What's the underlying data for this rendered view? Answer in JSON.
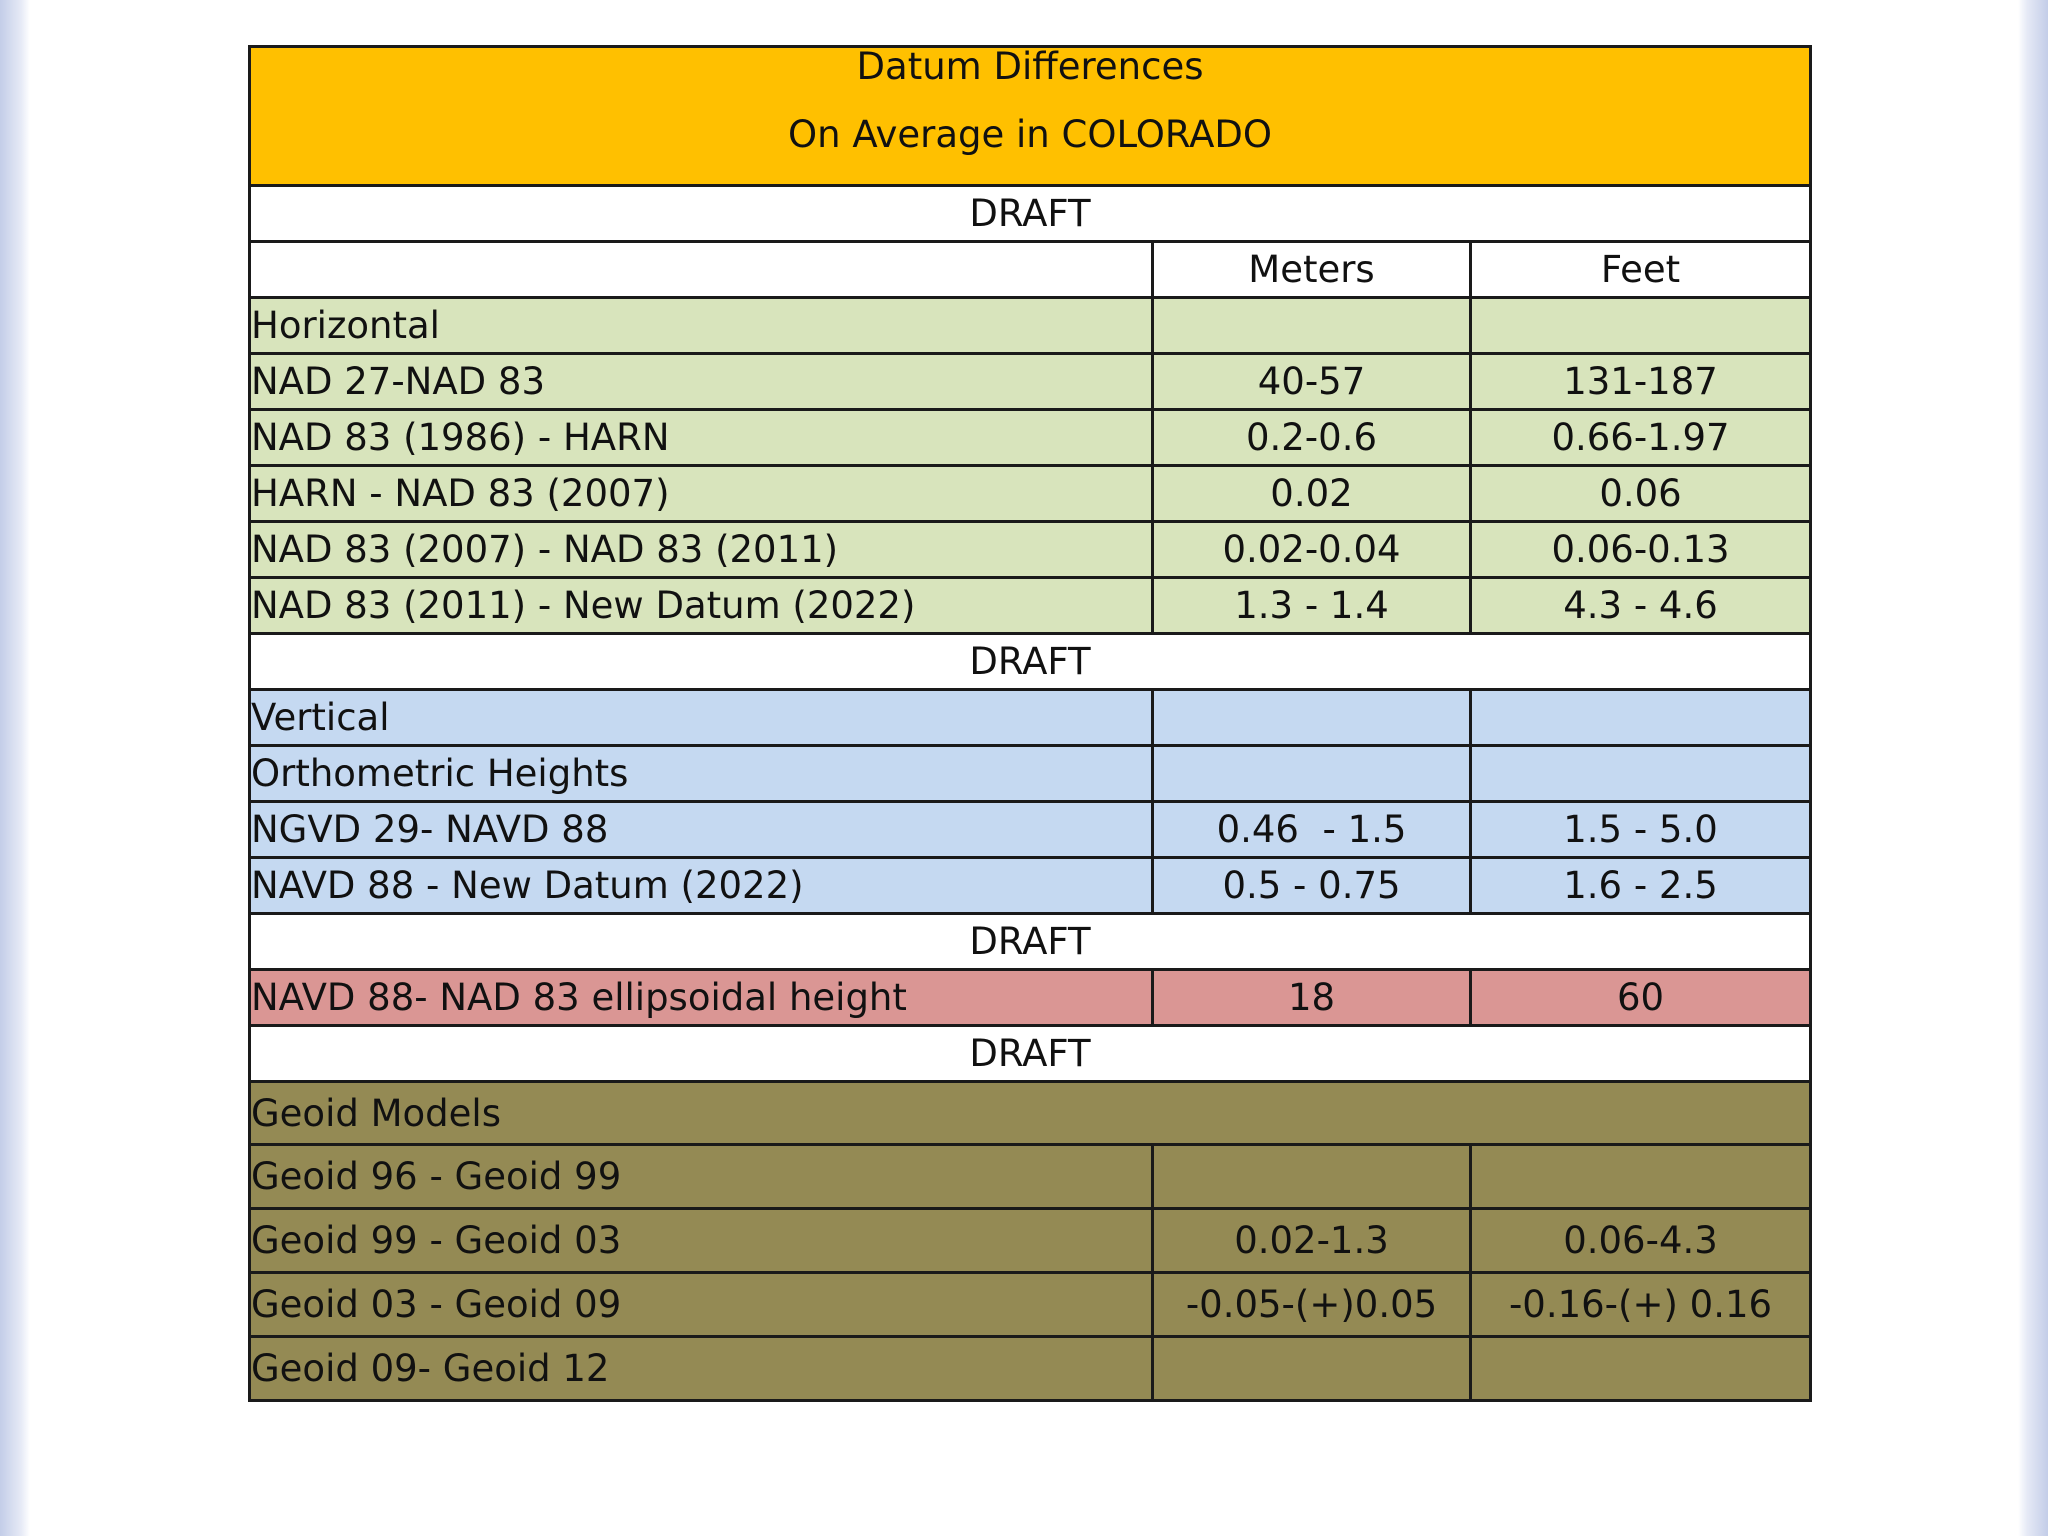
{
  "title": {
    "line1": "Datum Differences",
    "line2": "On Average in COLORADO"
  },
  "draft_label": "DRAFT",
  "columns": {
    "meters": "Meters",
    "feet": "Feet"
  },
  "horizontal": {
    "label": "Horizontal",
    "rows": [
      {
        "name": "NAD 27-NAD 83",
        "meters": "40-57",
        "feet": "131-187"
      },
      {
        "name": "NAD 83 (1986) - HARN",
        "meters": "0.2-0.6",
        "feet": "0.66-1.97"
      },
      {
        "name": "HARN - NAD 83 (2007)",
        "meters": "0.02",
        "feet": "0.06"
      },
      {
        "name": "NAD 83 (2007) - NAD 83 (2011)",
        "meters": "0.02-0.04",
        "feet": "0.06-0.13"
      },
      {
        "name": "NAD 83 (2011) - New Datum (2022)",
        "meters": "1.3 - 1.4",
        "feet": "4.3 - 4.6"
      }
    ]
  },
  "vertical": {
    "label": "Vertical",
    "sublabel": "Orthometric Heights",
    "rows": [
      {
        "name": "NGVD 29- NAVD 88",
        "meters": "0.46  - 1.5",
        "feet": "1.5 - 5.0"
      },
      {
        "name": "NAVD 88 - New Datum (2022)",
        "meters": "0.5 - 0.75",
        "feet": "1.6 - 2.5"
      }
    ]
  },
  "ellipsoidal": {
    "name": "NAVD 88- NAD 83 ellipsoidal height",
    "meters": "18",
    "feet": "60"
  },
  "geoid": {
    "label": "Geoid Models",
    "rows": [
      {
        "name": "Geoid 96 - Geoid 99",
        "meters": "",
        "feet": ""
      },
      {
        "name": "Geoid 99 - Geoid 03",
        "meters": "0.02-1.3",
        "feet": "0.06-4.3"
      },
      {
        "name": "Geoid 03 - Geoid 09",
        "meters": "-0.05-(+)0.05",
        "feet": "-0.16-(+) 0.16"
      },
      {
        "name": "Geoid 09- Geoid 12",
        "meters": "",
        "feet": ""
      }
    ]
  },
  "colors": {
    "title_bg": "#ffc000",
    "horizontal_bg": "#d8e4bc",
    "vertical_bg": "#c5d9f1",
    "ellipsoidal_bg": "#da9694",
    "geoid_bg": "#948a54",
    "draft_text": "#e00000"
  }
}
